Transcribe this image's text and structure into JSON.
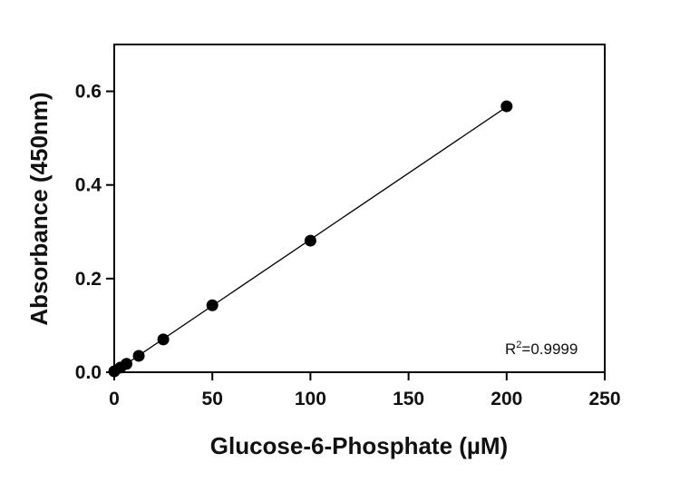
{
  "chart_data": {
    "type": "scatter",
    "title": "",
    "xlabel": "Glucose-6-Phosphate (µM)",
    "ylabel": "Absorbance (450nm)",
    "xlim": [
      0,
      250
    ],
    "ylim": [
      0,
      0.7
    ],
    "x_ticks": [
      0,
      50,
      100,
      150,
      200,
      250
    ],
    "y_ticks": [
      0.0,
      0.2,
      0.4,
      0.6
    ],
    "x_tick_labels": [
      "0",
      "50",
      "100",
      "150",
      "200",
      "250"
    ],
    "y_tick_labels": [
      "0.0",
      "0.2",
      "0.4",
      "0.6"
    ],
    "grid": false,
    "legend": "none",
    "series": [
      {
        "x": [
          0,
          3.125,
          6.25,
          12.5,
          25,
          50,
          100,
          200
        ],
        "y": [
          0.002,
          0.01,
          0.018,
          0.035,
          0.07,
          0.143,
          0.281,
          0.568
        ]
      }
    ],
    "fit_line": {
      "type": "linear",
      "x_range": [
        0,
        200
      ]
    },
    "annotation": {
      "prefix": "R",
      "superscript": "2",
      "suffix": "=0.9999"
    },
    "colors": {
      "marker": "#000000",
      "line": "#000000",
      "axes": "#000000"
    }
  }
}
